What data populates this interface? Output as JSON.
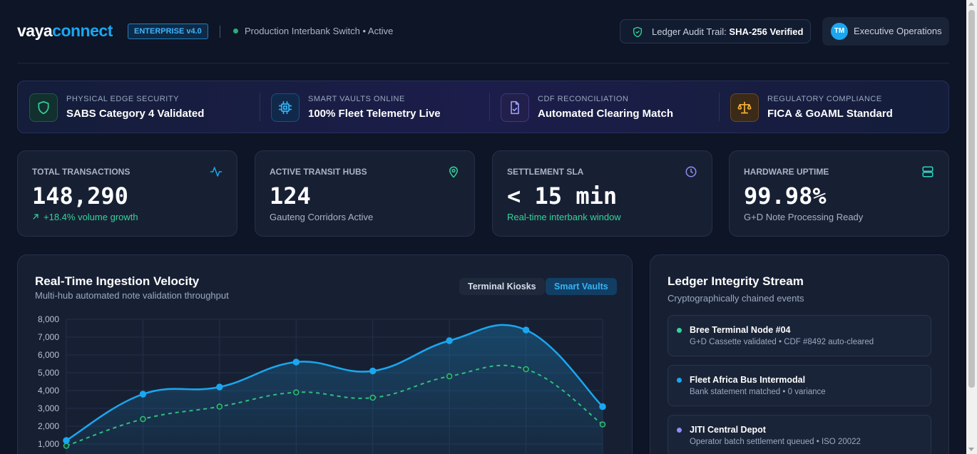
{
  "header": {
    "logo_a": "vaya",
    "logo_b": "connect",
    "version_badge": "ENTERPRISE v4.0",
    "environment": "Production Interbank Switch • Active",
    "audit_prefix": "Ledger Audit Trail:",
    "audit_value": "SHA-256 Verified",
    "user_initials": "TM",
    "user_role": "Executive Operations"
  },
  "features": [
    {
      "key": "PHYSICAL EDGE SECURITY",
      "value": "SABS Category 4 Validated",
      "icon": "shield-icon"
    },
    {
      "key": "SMART VAULTS ONLINE",
      "value": "100% Fleet Telemetry Live",
      "icon": "chip-icon"
    },
    {
      "key": "CDF RECONCILIATION",
      "value": "Automated Clearing Match",
      "icon": "file-check-icon"
    },
    {
      "key": "REGULATORY COMPLIANCE",
      "value": "FICA & GoAML Standard",
      "icon": "scale-icon"
    }
  ],
  "stats": [
    {
      "label": "TOTAL TRANSACTIONS",
      "value": "148,290",
      "sub": "+18.4% volume growth",
      "icon": "activity-icon"
    },
    {
      "label": "ACTIVE TRANSIT HUBS",
      "value": "124",
      "sub": "Gauteng Corridors Active",
      "icon": "map-pin-icon"
    },
    {
      "label": "SETTLEMENT SLA",
      "value": "< 15 min",
      "sub": "Real-time interbank window",
      "icon": "clock-icon"
    },
    {
      "label": "HARDWARE UPTIME",
      "value": "99.98%",
      "sub": "G+D Note Processing Ready",
      "icon": "server-icon"
    }
  ],
  "chart_panel": {
    "title": "Real-Time Ingestion Velocity",
    "subtitle": "Multi-hub automated note validation throughput",
    "toggle_off": "Terminal Kiosks",
    "toggle_on": "Smart Vaults"
  },
  "chart_data": {
    "type": "line",
    "ylim": [
      0,
      8000
    ],
    "y_ticks": [
      "8,000",
      "7,000",
      "6,000",
      "5,000",
      "4,000",
      "3,000",
      "2,000",
      "1,000"
    ],
    "series": [
      {
        "values": [
          1200,
          3800,
          4200,
          5600,
          5100,
          6800,
          7400,
          3100
        ],
        "color": "#1aa7f0",
        "style": "solid"
      },
      {
        "values": [
          900,
          2400,
          3100,
          3900,
          3600,
          4800,
          5200,
          2100
        ],
        "color": "#2fbf7f",
        "style": "dashed"
      }
    ]
  },
  "ledger": {
    "title": "Ledger Integrity Stream",
    "subtitle": "Cryptographically chained events",
    "events": [
      {
        "name": "Bree Terminal Node #04",
        "desc": "G+D Cassette validated • CDF #8492 auto-cleared",
        "color": "#34d399"
      },
      {
        "name": "Fleet Africa Bus Intermodal",
        "desc": "Bank statement matched • 0 variance",
        "color": "#1aa7f0"
      },
      {
        "name": "JITI Central Depot",
        "desc": "Operator batch settlement queued • ISO 20022",
        "color": "#8b8ff5"
      }
    ]
  }
}
